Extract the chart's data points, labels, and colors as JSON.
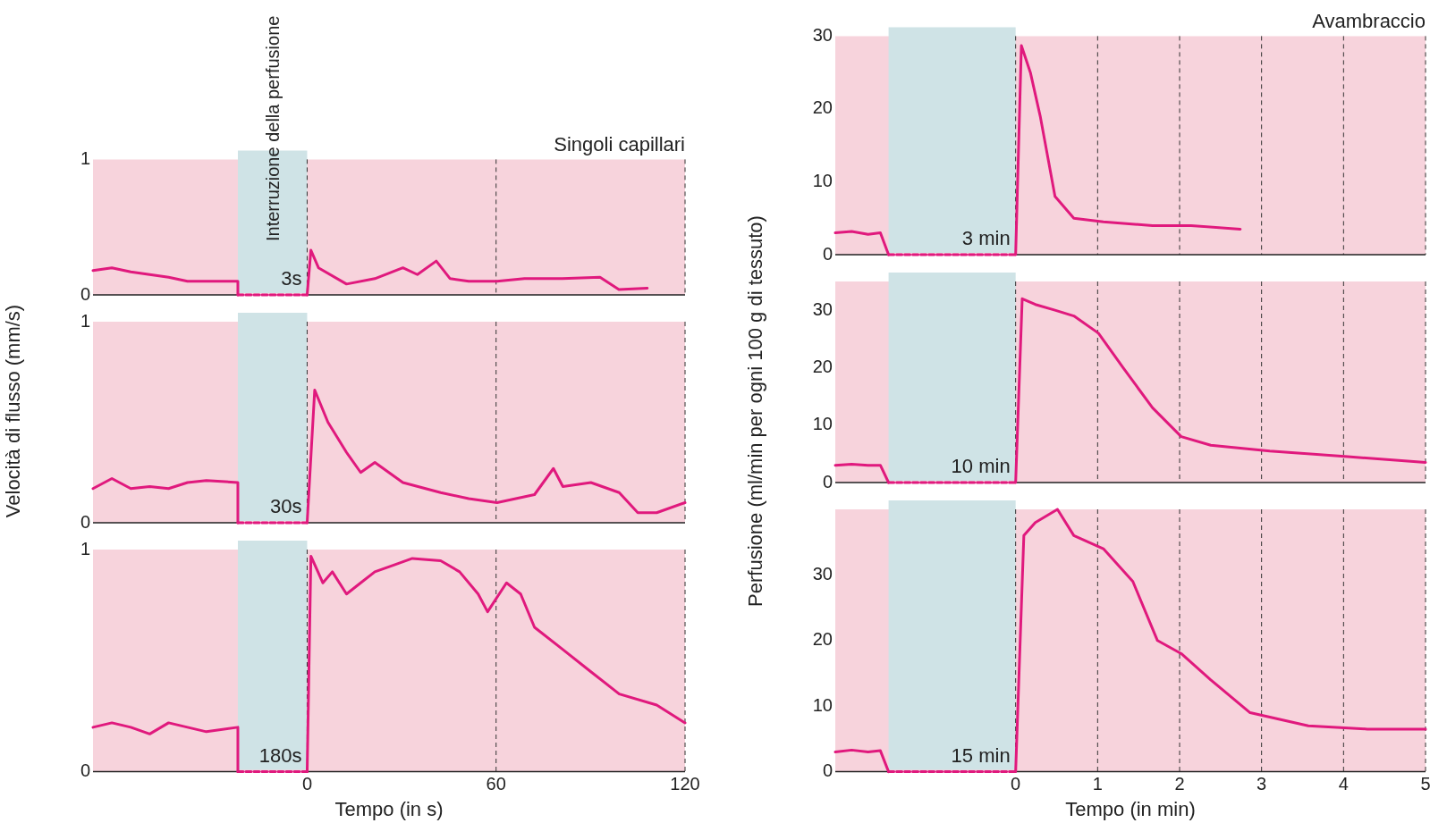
{
  "chart_data": [
    {
      "type": "line",
      "title": "Singoli capillari",
      "xlim": [
        -68,
        120
      ],
      "ylim": [
        0,
        1
      ],
      "xticks": [
        0,
        60,
        120
      ],
      "yticks": [
        0,
        1
      ],
      "tick_labels": "y",
      "grid": "x",
      "legend": false,
      "marker": "none",
      "bands": [
        {
          "axis": "x",
          "from": -22,
          "to": 0,
          "label": "Interruzione della perfusione",
          "color": "#cfe3e6"
        }
      ],
      "annotations": [
        "3s"
      ],
      "series": [
        {
          "color": "#e0197d",
          "x": [
            -68,
            -62,
            -56,
            -50,
            -44,
            -38,
            -32,
            -22,
            -22,
            0,
            1.2,
            3.6,
            12.5,
            21.5,
            30.4,
            35,
            41,
            45.4,
            51.3,
            60.3,
            69,
            81,
            93,
            99,
            108
          ],
          "values": [
            0.18,
            0.2,
            0.17,
            0.15,
            0.13,
            0.1,
            0.1,
            0.1,
            0,
            0,
            0.33,
            0.2,
            0.08,
            0.12,
            0.2,
            0.15,
            0.25,
            0.12,
            0.1,
            0.1,
            0.12,
            0.12,
            0.13,
            0.04,
            0.05
          ]
        }
      ]
    },
    {
      "type": "line",
      "ylabel": "Velocità di flusso (mm/s)",
      "xlim": [
        -68,
        120
      ],
      "ylim": [
        0,
        1
      ],
      "xticks": [
        0,
        60,
        120
      ],
      "yticks": [
        0,
        1
      ],
      "tick_labels": "y",
      "grid": "x",
      "legend": false,
      "marker": "none",
      "bands": [
        {
          "axis": "x",
          "from": -22,
          "to": 0,
          "color": "#cfe3e6"
        }
      ],
      "annotations": [
        "30s"
      ],
      "series": [
        {
          "color": "#e0197d",
          "x": [
            -68,
            -62,
            -56,
            -50,
            -44,
            -38,
            -32,
            -22,
            -22,
            0,
            2.4,
            6.6,
            12.5,
            17,
            21.5,
            30.4,
            42.4,
            51.3,
            60.3,
            72.2,
            78.2,
            81.2,
            90.1,
            99.1,
            105,
            111,
            120
          ],
          "values": [
            0.17,
            0.22,
            0.17,
            0.18,
            0.17,
            0.2,
            0.21,
            0.2,
            0,
            0,
            0.66,
            0.5,
            0.35,
            0.25,
            0.3,
            0.2,
            0.15,
            0.12,
            0.1,
            0.14,
            0.27,
            0.18,
            0.2,
            0.15,
            0.05,
            0.05,
            0.1
          ]
        }
      ]
    },
    {
      "type": "line",
      "xlabel": "Tempo (in s)",
      "xlim": [
        -68,
        120
      ],
      "ylim": [
        0,
        1
      ],
      "xticks": [
        0,
        60,
        120
      ],
      "yticks": [
        0,
        1
      ],
      "grid": "x",
      "legend": false,
      "marker": "none",
      "bands": [
        {
          "axis": "x",
          "from": -22,
          "to": 0,
          "color": "#cfe3e6"
        }
      ],
      "annotations": [
        "180s"
      ],
      "series": [
        {
          "color": "#e0197d",
          "x": [
            -68,
            -62,
            -56,
            -50,
            -44,
            -38,
            -32,
            -22,
            -22,
            0,
            1.2,
            5,
            8,
            12.5,
            17,
            21.5,
            27.5,
            33.4,
            42.4,
            48.4,
            54.3,
            57.3,
            63.3,
            67.8,
            72.2,
            81.2,
            90.1,
            99.1,
            111,
            120
          ],
          "values": [
            0.2,
            0.22,
            0.2,
            0.17,
            0.22,
            0.2,
            0.18,
            0.2,
            0,
            0,
            0.97,
            0.85,
            0.9,
            0.8,
            0.85,
            0.9,
            0.93,
            0.96,
            0.95,
            0.9,
            0.8,
            0.72,
            0.85,
            0.8,
            0.65,
            0.55,
            0.45,
            0.35,
            0.3,
            0.22
          ]
        }
      ]
    },
    {
      "type": "line",
      "title": "Avambraccio",
      "xlim": [
        -2.2,
        5
      ],
      "ylim": [
        0,
        30
      ],
      "xticks": [
        0,
        1,
        2,
        3,
        4,
        5
      ],
      "yticks": [
        0,
        10,
        20,
        30
      ],
      "tick_labels": "y",
      "grid": "x",
      "legend": false,
      "marker": "none",
      "bands": [
        {
          "axis": "x",
          "from": -1.55,
          "to": 0,
          "color": "#cfe3e6"
        }
      ],
      "annotations": [
        "3 min"
      ],
      "series": [
        {
          "color": "#e0197d",
          "x": [
            -2.2,
            -2,
            -1.8,
            -1.65,
            -1.55,
            0,
            0.07,
            0.18,
            0.3,
            0.48,
            0.71,
            1.07,
            1.67,
            2.14,
            2.74
          ],
          "values": [
            3,
            3.2,
            2.8,
            3,
            0,
            0,
            28.7,
            25,
            19,
            8,
            5,
            4.5,
            4,
            4,
            3.5
          ]
        }
      ]
    },
    {
      "type": "line",
      "ylabel": "Perfusione (ml/min per ogni 100 g di tessuto)",
      "xlim": [
        -2.2,
        5
      ],
      "ylim": [
        0,
        35
      ],
      "xticks": [
        0,
        1,
        2,
        3,
        4,
        5
      ],
      "yticks": [
        0,
        10,
        20,
        30
      ],
      "tick_labels": "y",
      "grid": "x",
      "legend": false,
      "marker": "none",
      "bands": [
        {
          "axis": "x",
          "from": -1.55,
          "to": 0,
          "color": "#cfe3e6"
        }
      ],
      "annotations": [
        "10 min"
      ],
      "series": [
        {
          "color": "#e0197d",
          "x": [
            -2.2,
            -2,
            -1.8,
            -1.65,
            -1.55,
            0,
            0.08,
            0.24,
            0.48,
            0.71,
            1.01,
            1.31,
            1.67,
            2.02,
            2.38,
            3.1,
            4.05,
            5
          ],
          "values": [
            3,
            3.2,
            3,
            3,
            0,
            0,
            32,
            31,
            30,
            29,
            26,
            20,
            13,
            8,
            6.5,
            5.5,
            4.5,
            3.5
          ]
        }
      ]
    },
    {
      "type": "line",
      "xlabel": "Tempo (in min)",
      "xlim": [
        -2.2,
        5
      ],
      "ylim": [
        0,
        40
      ],
      "xticks": [
        0,
        1,
        2,
        3,
        4,
        5
      ],
      "yticks": [
        0,
        10,
        20,
        30
      ],
      "grid": "x",
      "legend": false,
      "marker": "none",
      "bands": [
        {
          "axis": "x",
          "from": -1.55,
          "to": 0,
          "color": "#cfe3e6"
        }
      ],
      "annotations": [
        "15 min"
      ],
      "series": [
        {
          "color": "#e0197d",
          "x": [
            -2.2,
            -2,
            -1.8,
            -1.65,
            -1.55,
            0,
            0.1,
            0.24,
            0.51,
            0.71,
            1.07,
            1.43,
            1.73,
            2.02,
            2.38,
            2.86,
            3.57,
            4.29,
            5
          ],
          "values": [
            3,
            3.3,
            3,
            3.2,
            0,
            0,
            36,
            38,
            40,
            36,
            34,
            29,
            20,
            18,
            14,
            9,
            7,
            6.5,
            6.5
          ]
        }
      ]
    }
  ]
}
